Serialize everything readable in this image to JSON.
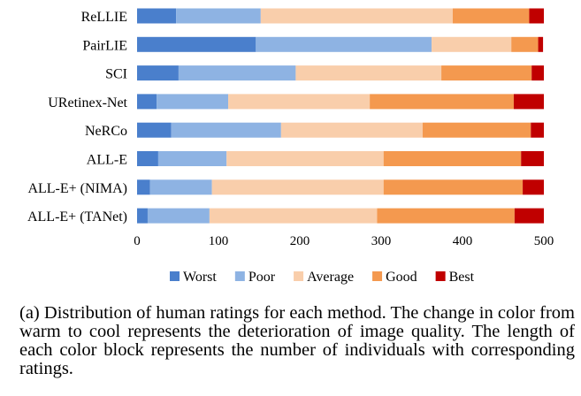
{
  "chart_data": {
    "type": "bar",
    "orientation": "horizontal",
    "stacked": true,
    "categories": [
      "ReLLIE",
      "PairLIE",
      "SCI",
      "URetinex-Net",
      "NeRCo",
      "ALL-E",
      "ALL-E+ (NIMA)",
      "ALL-E+ (TANet)"
    ],
    "series": [
      {
        "name": "Worst",
        "color": "#4a7fcc",
        "values": [
          48,
          146,
          51,
          24,
          42,
          26,
          16,
          13
        ]
      },
      {
        "name": "Poor",
        "color": "#8eb3e3",
        "values": [
          104,
          216,
          144,
          88,
          135,
          84,
          76,
          76
        ]
      },
      {
        "name": "Average",
        "color": "#f9ceab",
        "values": [
          236,
          98,
          179,
          174,
          174,
          193,
          211,
          206
        ]
      },
      {
        "name": "Good",
        "color": "#f4994f",
        "values": [
          94,
          33,
          111,
          177,
          133,
          169,
          171,
          169
        ]
      },
      {
        "name": "Best",
        "color": "#c00000",
        "values": [
          18,
          6,
          15,
          37,
          16,
          28,
          26,
          36
        ]
      }
    ],
    "xlim": [
      0,
      500
    ],
    "xticks": [
      "0",
      "100",
      "200",
      "300",
      "400",
      "500"
    ],
    "grid": false,
    "legend_position": "bottom"
  },
  "caption": "(a) Distribution of human ratings for each method. The change in color from warm to cool represents the deterioration of image quality. The length of each color block represents the number of individuals with corresponding ratings."
}
